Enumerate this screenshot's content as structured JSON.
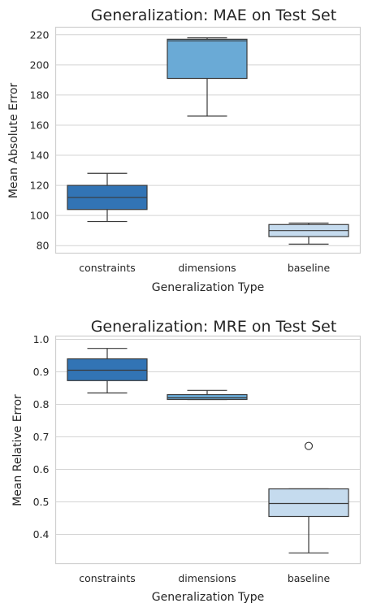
{
  "chart_data": [
    {
      "type": "box",
      "title": "Generalization: MAE on Test Set",
      "xlabel": "Generalization Type",
      "ylabel": "Mean Absolute Error",
      "categories": [
        "constraints",
        "dimensions",
        "baseline"
      ],
      "ylim": [
        75,
        225
      ],
      "yticks": [
        80,
        100,
        120,
        140,
        160,
        180,
        200,
        220
      ],
      "grid": true,
      "boxes": [
        {
          "category": "constraints",
          "whislo": 96,
          "q1": 104,
          "median": 112,
          "q3": 120,
          "whishi": 128,
          "fliers": [],
          "color": "#3274b5"
        },
        {
          "category": "dimensions",
          "whislo": 166,
          "q1": 191,
          "median": 216,
          "q3": 217,
          "whishi": 218,
          "fliers": [],
          "color": "#6aaad6"
        },
        {
          "category": "baseline",
          "whislo": 81,
          "q1": 86,
          "median": 90,
          "q3": 94,
          "whishi": 95,
          "fliers": [],
          "color": "#c5dbee"
        }
      ]
    },
    {
      "type": "box",
      "title": "Generalization: MRE on Test Set",
      "xlabel": "Generalization Type",
      "ylabel": "Mean Relative Error",
      "categories": [
        "constraints",
        "dimensions",
        "baseline"
      ],
      "ylim": [
        0.31,
        1.01
      ],
      "yticks": [
        0.4,
        0.5,
        0.6,
        0.7,
        0.8,
        0.9,
        1.0
      ],
      "ytick_labels": [
        "0.4",
        "0.5",
        "0.6",
        "0.7",
        "0.8",
        "0.9",
        "1.0"
      ],
      "grid": true,
      "boxes": [
        {
          "category": "constraints",
          "whislo": 0.835,
          "q1": 0.873,
          "median": 0.905,
          "q3": 0.94,
          "whishi": 0.972,
          "fliers": [],
          "color": "#3274b5"
        },
        {
          "category": "dimensions",
          "whislo": 0.815,
          "q1": 0.815,
          "median": 0.82,
          "q3": 0.83,
          "whishi": 0.843,
          "fliers": [],
          "color": "#6aaad6"
        },
        {
          "category": "baseline",
          "whislo": 0.343,
          "q1": 0.455,
          "median": 0.495,
          "q3": 0.54,
          "whishi": 0.54,
          "fliers": [
            0.672
          ],
          "color": "#c5dbee"
        }
      ]
    }
  ]
}
